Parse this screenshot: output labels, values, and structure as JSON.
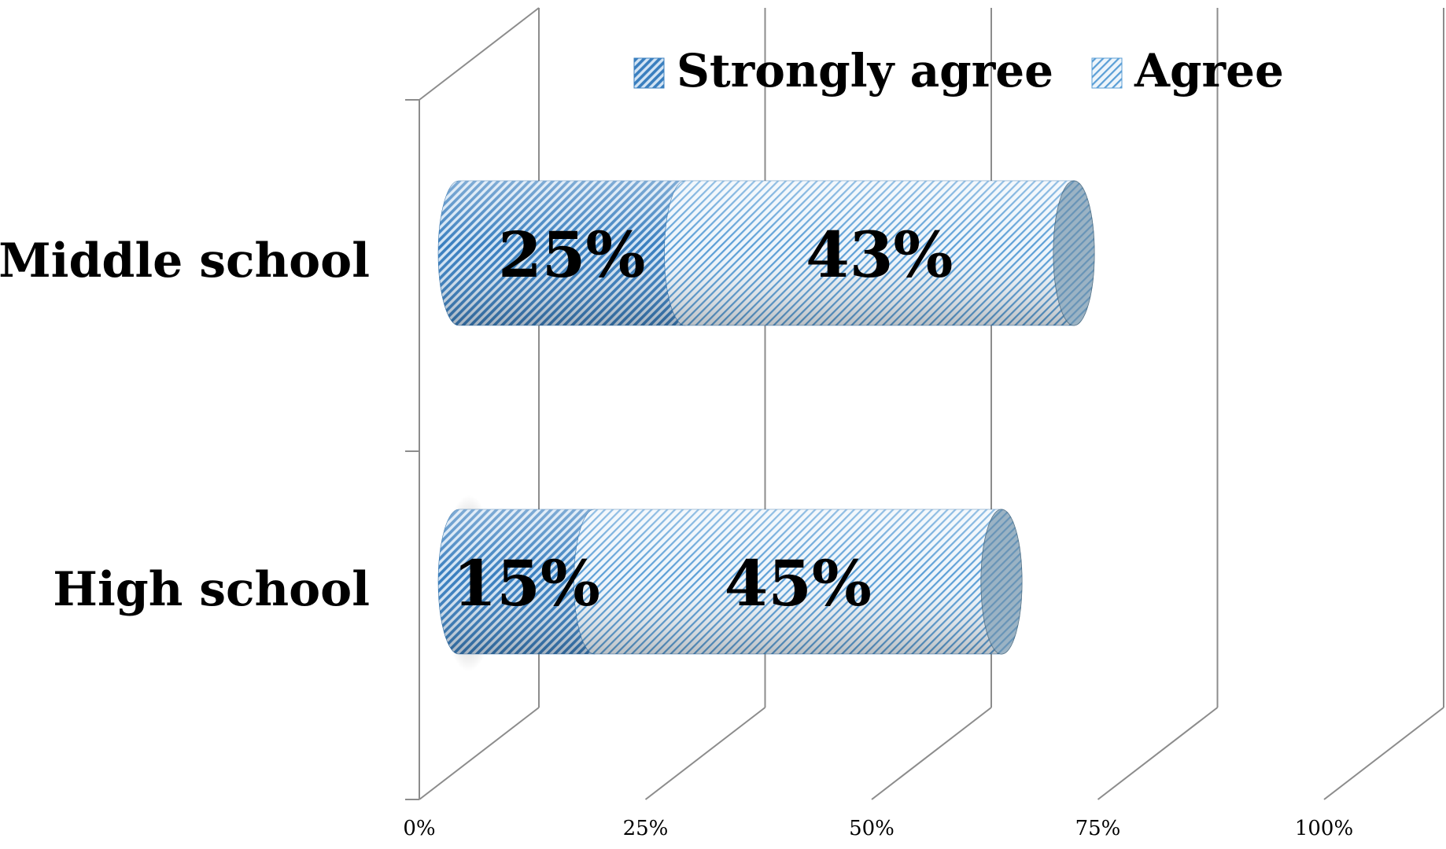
{
  "chart_data": {
    "type": "bar",
    "orientation": "horizontal",
    "stacked": true,
    "three_d": true,
    "categories": [
      "Middle school",
      "High school"
    ],
    "series": [
      {
        "name": "Strongly agree",
        "values": [
          25,
          15
        ],
        "labels": [
          "25%",
          "15%"
        ],
        "color": "#3a7fbf",
        "pattern": "dense-diagonal-hatch"
      },
      {
        "name": "Agree",
        "values": [
          43,
          45
        ],
        "labels": [
          "43%",
          "45%"
        ],
        "color": "#5a9ed6",
        "pattern": "light-diagonal-hatch"
      }
    ],
    "x_ticks": [
      "0%",
      "25%",
      "50%",
      "75%",
      "100%"
    ],
    "xlim": [
      0,
      100
    ],
    "grid": true,
    "legend": "top-right",
    "title": "",
    "xlabel": "",
    "ylabel": ""
  }
}
